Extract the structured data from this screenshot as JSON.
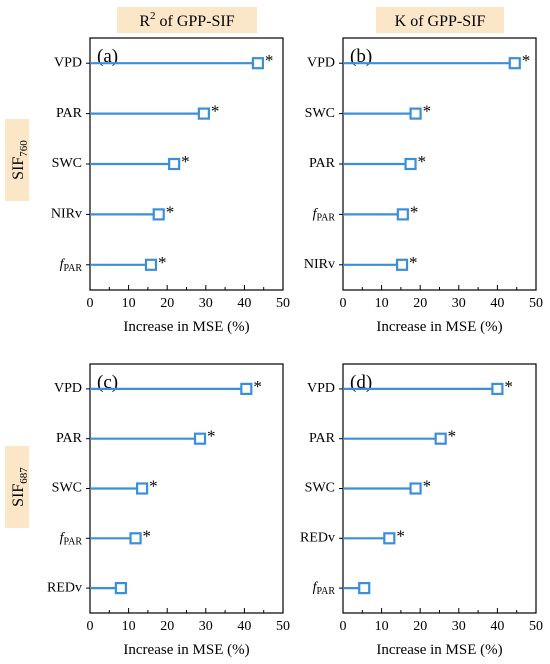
{
  "col_titles": [
    "R² of GPP-SIF",
    "K of GPP-SIF"
  ],
  "row_labels": [
    {
      "base": "SIF",
      "sub": "760"
    },
    {
      "base": "SIF",
      "sub": "687"
    }
  ],
  "colors": {
    "series": "#3b8fd9",
    "title_bg": "#fbe6c8"
  },
  "chart_data": [
    {
      "type": "lollipop-bar",
      "panel": "(a)",
      "categories": [
        "VPD",
        "PAR",
        "SWC",
        "NIRv",
        "fPAR"
      ],
      "values": [
        43.5,
        29.5,
        21.8,
        17.8,
        15.8
      ],
      "significant": [
        true,
        true,
        true,
        true,
        true
      ],
      "xlabel": "Increase in MSE (%)",
      "xlim": [
        0,
        50
      ],
      "xticks": [
        0,
        10,
        20,
        30,
        40,
        50
      ]
    },
    {
      "type": "lollipop-bar",
      "panel": "(b)",
      "categories": [
        "VPD",
        "SWC",
        "PAR",
        "fPAR",
        "NIRv"
      ],
      "values": [
        44.5,
        18.8,
        17.5,
        15.5,
        15.3
      ],
      "significant": [
        true,
        true,
        true,
        true,
        true
      ],
      "xlabel": "Increase in MSE (%)",
      "xlim": [
        0,
        50
      ],
      "xticks": [
        0,
        10,
        20,
        30,
        40,
        50
      ]
    },
    {
      "type": "lollipop-bar",
      "panel": "(c)",
      "categories": [
        "VPD",
        "PAR",
        "SWC",
        "fPAR",
        "REDv"
      ],
      "values": [
        40.5,
        28.5,
        13.5,
        11.8,
        8.0
      ],
      "significant": [
        true,
        true,
        true,
        true,
        false
      ],
      "xlabel": "Increase in MSE (%)",
      "xlim": [
        0,
        50
      ],
      "xticks": [
        0,
        10,
        20,
        30,
        40,
        50
      ]
    },
    {
      "type": "lollipop-bar",
      "panel": "(d)",
      "categories": [
        "VPD",
        "PAR",
        "SWC",
        "REDv",
        "fPAR"
      ],
      "values": [
        40.0,
        25.3,
        18.8,
        12.0,
        5.5
      ],
      "significant": [
        true,
        true,
        true,
        true,
        false
      ],
      "xlabel": "Increase in MSE (%)",
      "xlim": [
        0,
        50
      ],
      "xticks": [
        0,
        10,
        20,
        30,
        40,
        50
      ]
    }
  ]
}
